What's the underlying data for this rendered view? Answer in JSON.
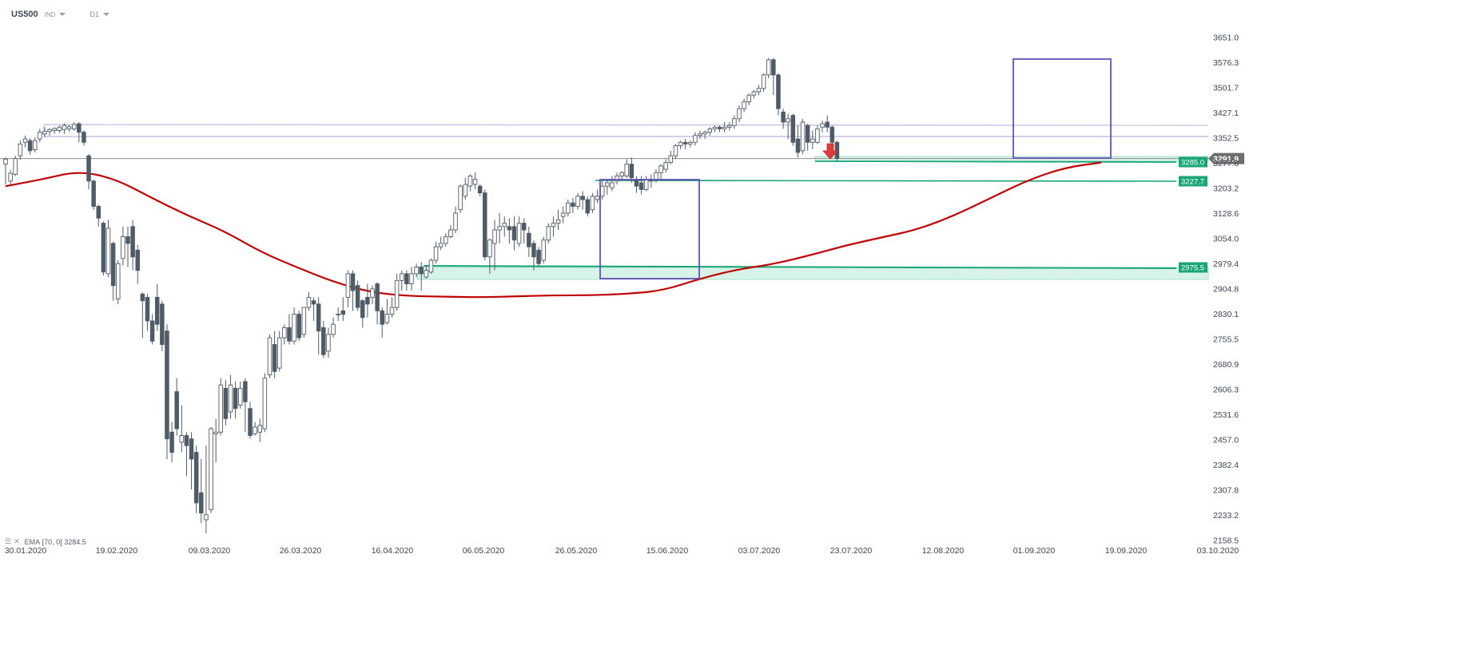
{
  "header": {
    "symbol": "US500",
    "type": "IND",
    "timeframe": "D1"
  },
  "indicator": {
    "menu_icon": "list-icon",
    "close_icon": "close-icon",
    "label": "EMA",
    "params": "[70, 0]",
    "value": "3284.5"
  },
  "colors": {
    "candle_up_fill": "#ffffff",
    "candle_down_fill": "#4f5b66",
    "candle_stroke": "#4f5b66",
    "ema": "#c00000",
    "support": "#1aa577",
    "zone_fill": "#d7f3e8",
    "resistance_band": "#c9c0e6",
    "box": "#6650b8",
    "arrow": "#e03b3b",
    "price_line": "#8d8d8d",
    "price_tag": "#6d6d6d"
  },
  "chart_data": {
    "type": "candlestick",
    "title": "",
    "y_axis": {
      "ylim": [
        2158.5,
        3700
      ],
      "ticks": [
        "3651.0",
        "3576.3",
        "3501.7",
        "3427.1",
        "3352.5",
        "3277.8",
        "3203.2",
        "3128.6",
        "3054.0",
        "2979.4",
        "2904.8",
        "2830.1",
        "2755.5",
        "2680.9",
        "2606.3",
        "2531.6",
        "2457.0",
        "2382.4",
        "2307.8",
        "2233.2",
        "2158.5"
      ]
    },
    "x_axis": {
      "ticks": [
        "30.01.2020",
        "19.02.2020",
        "09.03.2020",
        "26.03.2020",
        "16.04.2020",
        "06.05.2020",
        "26.05.2020",
        "15.06.2020",
        "03.07.2020",
        "23.07.2020",
        "12.08.2020",
        "01.09.2020",
        "19.09.2020",
        "03.10.2020"
      ]
    },
    "current_price": "3291.9",
    "levels": [
      {
        "label": "3285.0",
        "value": 3285.0
      },
      {
        "label": "3227.7",
        "value": 3227.7
      },
      {
        "label": "2975.5",
        "value": 2975.5
      }
    ],
    "ema_70": [
      3210,
      3230,
      3255,
      3232,
      3175,
      3122,
      3076,
      3014,
      2968,
      2925,
      2895,
      2884,
      2882,
      2880,
      2883,
      2886,
      2886,
      2890,
      2900,
      2935,
      2962,
      2978,
      3004,
      3034,
      3058,
      3082,
      3124,
      3176,
      3228,
      3265,
      3280
    ],
    "candles": [
      [
        3275,
        3290,
        3215,
        3295
      ],
      [
        3225,
        3248,
        3212,
        3258
      ],
      [
        3245,
        3292,
        3240,
        3300
      ],
      [
        3300,
        3335,
        3288,
        3345
      ],
      [
        3340,
        3350,
        3325,
        3360
      ],
      [
        3345,
        3315,
        3303,
        3352
      ],
      [
        3318,
        3345,
        3310,
        3355
      ],
      [
        3350,
        3370,
        3340,
        3380
      ],
      [
        3365,
        3373,
        3355,
        3385
      ],
      [
        3372,
        3378,
        3360,
        3382
      ],
      [
        3375,
        3381,
        3365,
        3385
      ],
      [
        3375,
        3385,
        3368,
        3390
      ],
      [
        3378,
        3390,
        3365,
        3395
      ],
      [
        3380,
        3386,
        3372,
        3392
      ],
      [
        3380,
        3393,
        3374,
        3400
      ],
      [
        3395,
        3370,
        3340,
        3400
      ],
      [
        3370,
        3340,
        3330,
        3375
      ],
      [
        3300,
        3225,
        3200,
        3305
      ],
      [
        3225,
        3150,
        3140,
        3230
      ],
      [
        3150,
        3115,
        3090,
        3155
      ],
      [
        3100,
        2955,
        2945,
        3105
      ],
      [
        2950,
        3085,
        2940,
        3110
      ],
      [
        3040,
        2915,
        2870,
        3045
      ],
      [
        2875,
        2980,
        2860,
        2990
      ],
      [
        2995,
        3060,
        2975,
        3090
      ],
      [
        3060,
        3040,
        2970,
        3090
      ],
      [
        3090,
        3000,
        2960,
        3110
      ],
      [
        3020,
        2960,
        2920,
        3035
      ],
      [
        2890,
        2870,
        2760,
        2895
      ],
      [
        2880,
        2810,
        2780,
        2890
      ],
      [
        2810,
        2750,
        2740,
        2830
      ],
      [
        2880,
        2800,
        2780,
        2920
      ],
      [
        2860,
        2740,
        2720,
        2870
      ],
      [
        2780,
        2460,
        2400,
        2800
      ],
      [
        2480,
        2420,
        2390,
        2510
      ],
      [
        2600,
        2490,
        2470,
        2640
      ],
      [
        2450,
        2470,
        2420,
        2560
      ],
      [
        2470,
        2440,
        2350,
        2480
      ],
      [
        2460,
        2400,
        2310,
        2480
      ],
      [
        2420,
        2270,
        2240,
        2440
      ],
      [
        2300,
        2240,
        2210,
        2400
      ],
      [
        2220,
        2235,
        2180,
        2440
      ],
      [
        2250,
        2490,
        2240,
        2495
      ],
      [
        2475,
        2480,
        2390,
        2520
      ],
      [
        2480,
        2620,
        2470,
        2640
      ],
      [
        2610,
        2520,
        2500,
        2635
      ],
      [
        2540,
        2620,
        2520,
        2650
      ],
      [
        2610,
        2550,
        2520,
        2630
      ],
      [
        2560,
        2610,
        2550,
        2630
      ],
      [
        2630,
        2570,
        2480,
        2640
      ],
      [
        2550,
        2470,
        2460,
        2570
      ],
      [
        2475,
        2495,
        2470,
        2510
      ],
      [
        2480,
        2500,
        2450,
        2520
      ],
      [
        2490,
        2640,
        2480,
        2655
      ],
      [
        2650,
        2760,
        2640,
        2770
      ],
      [
        2740,
        2660,
        2640,
        2780
      ],
      [
        2670,
        2760,
        2660,
        2780
      ],
      [
        2760,
        2790,
        2740,
        2800
      ],
      [
        2790,
        2750,
        2740,
        2830
      ],
      [
        2750,
        2830,
        2740,
        2850
      ],
      [
        2830,
        2760,
        2750,
        2840
      ],
      [
        2770,
        2850,
        2760,
        2850
      ],
      [
        2850,
        2880,
        2840,
        2895
      ],
      [
        2870,
        2860,
        2810,
        2880
      ],
      [
        2860,
        2780,
        2710,
        2880
      ],
      [
        2790,
        2710,
        2700,
        2810
      ],
      [
        2720,
        2770,
        2700,
        2790
      ],
      [
        2770,
        2800,
        2760,
        2820
      ],
      [
        2830,
        2830,
        2810,
        2850
      ],
      [
        2840,
        2830,
        2810,
        2880
      ],
      [
        2880,
        2950,
        2850,
        2960
      ],
      [
        2950,
        2900,
        2840,
        2960
      ],
      [
        2915,
        2850,
        2840,
        2930
      ],
      [
        2870,
        2820,
        2790,
        2875
      ],
      [
        2880,
        2860,
        2820,
        2920
      ],
      [
        2880,
        2905,
        2860,
        2915
      ],
      [
        2920,
        2840,
        2800,
        2925
      ],
      [
        2840,
        2800,
        2760,
        2850
      ],
      [
        2805,
        2830,
        2800,
        2875
      ],
      [
        2830,
        2850,
        2820,
        2880
      ],
      [
        2850,
        2930,
        2840,
        2950
      ],
      [
        2930,
        2950,
        2900,
        2960
      ],
      [
        2950,
        2920,
        2900,
        2960
      ],
      [
        2920,
        2950,
        2900,
        2970
      ],
      [
        2950,
        2970,
        2940,
        2980
      ],
      [
        2970,
        2950,
        2900,
        2985
      ],
      [
        2940,
        2960,
        2935,
        2975
      ],
      [
        2955,
        2990,
        2950,
        2995
      ],
      [
        2990,
        3030,
        2980,
        3045
      ],
      [
        3030,
        3040,
        3020,
        3060
      ],
      [
        3040,
        3060,
        3030,
        3070
      ],
      [
        3060,
        3080,
        3055,
        3095
      ],
      [
        3080,
        3130,
        3070,
        3150
      ],
      [
        3140,
        3210,
        3130,
        3215
      ],
      [
        3180,
        3215,
        3170,
        3235
      ],
      [
        3210,
        3240,
        3195,
        3245
      ],
      [
        3215,
        3230,
        3200,
        3250
      ],
      [
        3210,
        3190,
        3180,
        3215
      ],
      [
        3190,
        3000,
        2990,
        3200
      ],
      [
        3000,
        3050,
        2950,
        3055
      ],
      [
        3040,
        3080,
        2960,
        3110
      ],
      [
        3080,
        3090,
        3040,
        3130
      ],
      [
        3090,
        3100,
        3060,
        3120
      ],
      [
        3090,
        3080,
        3040,
        3115
      ],
      [
        3090,
        3050,
        3020,
        3120
      ],
      [
        3040,
        3100,
        3030,
        3120
      ],
      [
        3100,
        3080,
        3040,
        3115
      ],
      [
        3070,
        3030,
        3000,
        3090
      ],
      [
        3040,
        3000,
        2960,
        3050
      ],
      [
        3020,
        2980,
        2970,
        3030
      ],
      [
        2990,
        3050,
        2980,
        3060
      ],
      [
        3050,
        3090,
        3040,
        3100
      ],
      [
        3090,
        3100,
        3060,
        3120
      ],
      [
        3100,
        3110,
        3080,
        3140
      ],
      [
        3120,
        3130,
        3100,
        3150
      ],
      [
        3130,
        3160,
        3120,
        3170
      ],
      [
        3160,
        3150,
        3130,
        3175
      ],
      [
        3150,
        3180,
        3140,
        3190
      ],
      [
        3180,
        3170,
        3140,
        3195
      ],
      [
        3170,
        3130,
        3120,
        3180
      ],
      [
        3140,
        3180,
        3130,
        3190
      ],
      [
        3170,
        3180,
        3160,
        3200
      ],
      [
        3180,
        3210,
        3170,
        3225
      ],
      [
        3210,
        3220,
        3185,
        3230
      ],
      [
        3205,
        3220,
        3195,
        3240
      ],
      [
        3225,
        3240,
        3215,
        3250
      ],
      [
        3240,
        3250,
        3230,
        3255
      ],
      [
        3240,
        3275,
        3235,
        3290
      ],
      [
        3275,
        3235,
        3220,
        3295
      ],
      [
        3230,
        3210,
        3190,
        3240
      ],
      [
        3220,
        3200,
        3185,
        3240
      ],
      [
        3200,
        3230,
        3195,
        3240
      ],
      [
        3230,
        3225,
        3205,
        3245
      ],
      [
        3230,
        3250,
        3220,
        3260
      ],
      [
        3250,
        3270,
        3230,
        3275
      ],
      [
        3260,
        3280,
        3250,
        3290
      ],
      [
        3280,
        3300,
        3275,
        3315
      ],
      [
        3300,
        3330,
        3290,
        3335
      ],
      [
        3330,
        3340,
        3320,
        3345
      ],
      [
        3340,
        3335,
        3320,
        3350
      ],
      [
        3335,
        3340,
        3325,
        3345
      ],
      [
        3340,
        3360,
        3330,
        3370
      ],
      [
        3360,
        3365,
        3350,
        3375
      ],
      [
        3365,
        3370,
        3350,
        3375
      ],
      [
        3370,
        3380,
        3360,
        3385
      ],
      [
        3380,
        3385,
        3370,
        3390
      ],
      [
        3385,
        3380,
        3370,
        3390
      ],
      [
        3380,
        3385,
        3370,
        3400
      ],
      [
        3385,
        3390,
        3375,
        3400
      ],
      [
        3390,
        3410,
        3380,
        3420
      ],
      [
        3410,
        3440,
        3400,
        3450
      ],
      [
        3440,
        3460,
        3430,
        3470
      ],
      [
        3460,
        3480,
        3450,
        3485
      ],
      [
        3480,
        3490,
        3470,
        3495
      ],
      [
        3490,
        3500,
        3480,
        3510
      ],
      [
        3500,
        3540,
        3490,
        3545
      ],
      [
        3540,
        3585,
        3530,
        3590
      ],
      [
        3585,
        3540,
        3480,
        3590
      ],
      [
        3540,
        3440,
        3420,
        3545
      ],
      [
        3430,
        3400,
        3380,
        3440
      ],
      [
        3400,
        3410,
        3350,
        3425
      ],
      [
        3420,
        3340,
        3330,
        3425
      ],
      [
        3350,
        3310,
        3295,
        3390
      ],
      [
        3315,
        3400,
        3305,
        3410
      ],
      [
        3390,
        3340,
        3315,
        3395
      ],
      [
        3340,
        3350,
        3320,
        3375
      ],
      [
        3340,
        3380,
        3335,
        3390
      ],
      [
        3385,
        3395,
        3370,
        3405
      ],
      [
        3400,
        3385,
        3370,
        3420
      ],
      [
        3385,
        3340,
        3325,
        3390
      ],
      [
        3340,
        3292,
        3285,
        3345
      ]
    ]
  }
}
